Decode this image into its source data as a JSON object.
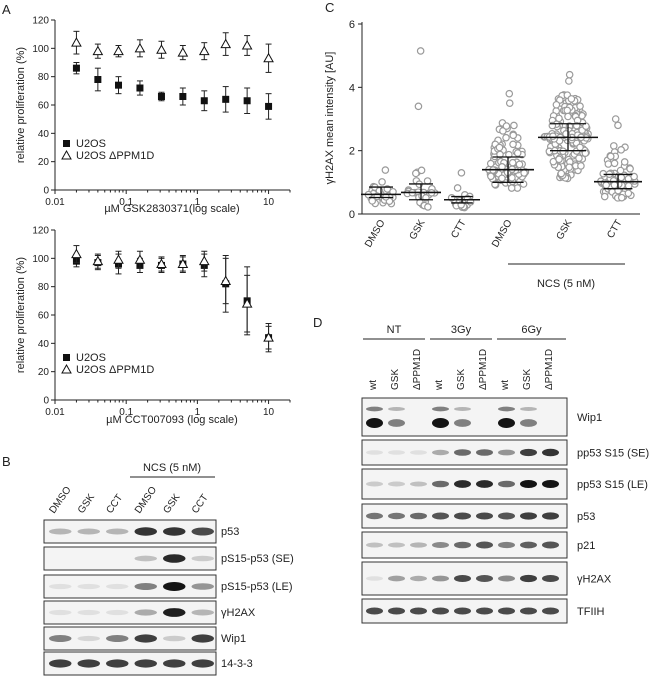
{
  "panels": {
    "A": "A",
    "B": "B",
    "C": "C",
    "D": "D"
  },
  "chart_data": [
    {
      "id": "A-top",
      "type": "scatter",
      "title": "",
      "xlabel": "µM GSK2830371(log scale)",
      "ylabel": "relative proliferation (%)",
      "xscale": "log",
      "xlim": [
        0.01,
        20
      ],
      "ylim": [
        0,
        120
      ],
      "yticks": [
        "0",
        "20",
        "40",
        "60",
        "80",
        "100",
        "120"
      ],
      "xticks": [
        "0.01",
        "0.1",
        "1",
        "10"
      ],
      "legend": [
        "U2OS",
        "U2OS  ΔPPM1D"
      ],
      "x": [
        0.02,
        0.04,
        0.078,
        0.156,
        0.313,
        0.625,
        1.25,
        2.5,
        5,
        10
      ],
      "series": [
        {
          "name": "U2OS",
          "marker": "square",
          "values": [
            86,
            78,
            74,
            72,
            66,
            66,
            63,
            64,
            63,
            59
          ],
          "err": [
            4,
            8,
            6,
            5,
            3,
            6,
            7,
            9,
            9,
            9
          ]
        },
        {
          "name": "U2OS ΔPPM1D",
          "marker": "triangle",
          "values": [
            104,
            98,
            98,
            100,
            99,
            97,
            98,
            103,
            102,
            93
          ],
          "err": [
            8,
            5,
            4,
            6,
            6,
            5,
            6,
            8,
            7,
            10
          ]
        }
      ]
    },
    {
      "id": "A-bottom",
      "type": "scatter",
      "title": "",
      "xlabel": "µM CCT007093 (log scale)",
      "ylabel": "relative proliferation (%)",
      "xscale": "log",
      "xlim": [
        0.01,
        20
      ],
      "ylim": [
        0,
        120
      ],
      "yticks": [
        "0",
        "20",
        "40",
        "60",
        "80",
        "100",
        "120"
      ],
      "xticks": [
        "0.01",
        "0.1",
        "1",
        "10"
      ],
      "legend": [
        "U2OS",
        "U2OS  ΔPPM1D"
      ],
      "x": [
        0.02,
        0.04,
        0.078,
        0.156,
        0.313,
        0.625,
        1.25,
        2.5,
        5,
        10
      ],
      "series": [
        {
          "name": "U2OS",
          "marker": "square",
          "values": [
            98,
            97,
            96,
            95,
            95,
            96,
            95,
            82,
            70,
            44
          ],
          "err": [
            4,
            5,
            7,
            5,
            5,
            5,
            8,
            20,
            24,
            10
          ]
        },
        {
          "name": "U2OS ΔPPM1D",
          "marker": "triangle",
          "values": [
            103,
            98,
            99,
            99,
            96,
            96,
            98,
            84,
            68,
            44
          ],
          "err": [
            6,
            5,
            6,
            6,
            5,
            6,
            7,
            16,
            20,
            8
          ]
        }
      ]
    },
    {
      "id": "C",
      "type": "scatter",
      "title": "",
      "xlabel": "",
      "ylabel": "γH2AX mean intensity [AU]",
      "ylim": [
        0,
        6
      ],
      "yticks": [
        "0",
        "2",
        "4",
        "6"
      ],
      "categories": [
        "DMSO",
        "GSK",
        "CTT",
        "DMSO",
        "GSK",
        "CTT"
      ],
      "group_label": "NCS (5 nM)",
      "medians": [
        0.62,
        0.68,
        0.45,
        1.4,
        2.42,
        1.02
      ],
      "iqr_low": [
        0.52,
        0.45,
        0.35,
        1.0,
        2.0,
        0.8
      ],
      "iqr_high": [
        0.85,
        0.95,
        0.55,
        1.8,
        2.85,
        1.25
      ],
      "spread_low": [
        0.3,
        0.2,
        0.2,
        0.8,
        1.1,
        0.5
      ],
      "spread_high": [
        1.5,
        1.5,
        0.9,
        2.9,
        3.8,
        2.2
      ],
      "outliers": [
        [],
        [
          5.15,
          3.4
        ],
        [
          1.3
        ],
        [
          3.5,
          3.8
        ],
        [
          4.2,
          4.4
        ],
        [
          2.8,
          3.0
        ]
      ]
    }
  ],
  "blotB": {
    "lane_labels": [
      "DMSO",
      "GSK",
      "CCT",
      "DMSO",
      "GSK",
      "CCT"
    ],
    "group_label": "NCS (5 nM)",
    "rows": [
      {
        "label": "p53",
        "intensity": [
          0.25,
          0.25,
          0.25,
          0.85,
          0.85,
          0.75
        ]
      },
      {
        "label": "pS15-p53 (SE)",
        "intensity": [
          0,
          0,
          0,
          0.2,
          0.9,
          0.15
        ]
      },
      {
        "label": "pS15-p53 (LE)",
        "intensity": [
          0.05,
          0.05,
          0.05,
          0.5,
          1.0,
          0.4
        ]
      },
      {
        "label": "γH2AX",
        "intensity": [
          0.05,
          0.05,
          0.05,
          0.3,
          0.95,
          0.25
        ]
      },
      {
        "label": "Wip1",
        "intensity": [
          0.5,
          0.1,
          0.5,
          0.8,
          0.15,
          0.8
        ]
      },
      {
        "label": "14-3-3",
        "intensity": [
          0.8,
          0.8,
          0.8,
          0.8,
          0.8,
          0.8
        ]
      }
    ]
  },
  "blotD": {
    "groups": [
      "NT",
      "3Gy",
      "6Gy"
    ],
    "lane_labels": [
      "wt",
      "GSK",
      "ΔPPM1D",
      "wt",
      "GSK",
      "ΔPPM1D",
      "wt",
      "GSK",
      "ΔPPM1D"
    ],
    "rows": [
      {
        "label": "Wip1",
        "intensity": [
          1.0,
          0.5,
          0.0,
          1.0,
          0.5,
          0.0,
          1.0,
          0.5,
          0.0
        ],
        "double": true
      },
      {
        "label": "pp53 S15 (SE)",
        "intensity": [
          0.05,
          0.05,
          0.05,
          0.3,
          0.6,
          0.6,
          0.4,
          0.8,
          0.85
        ]
      },
      {
        "label": "pp53 S15 (LE)",
        "intensity": [
          0.15,
          0.15,
          0.2,
          0.6,
          0.9,
          0.9,
          0.6,
          1.0,
          1.0
        ]
      },
      {
        "label": "p53",
        "intensity": [
          0.55,
          0.55,
          0.6,
          0.7,
          0.75,
          0.75,
          0.7,
          0.8,
          0.8
        ]
      },
      {
        "label": "p21",
        "intensity": [
          0.2,
          0.2,
          0.25,
          0.45,
          0.6,
          0.7,
          0.5,
          0.65,
          0.7
        ]
      },
      {
        "label": "γH2AX",
        "intensity": [
          0.05,
          0.35,
          0.3,
          0.4,
          0.75,
          0.7,
          0.45,
          0.8,
          0.75
        ]
      },
      {
        "label": "TFIIH",
        "intensity": [
          0.75,
          0.75,
          0.75,
          0.75,
          0.75,
          0.75,
          0.75,
          0.75,
          0.75
        ]
      }
    ]
  }
}
